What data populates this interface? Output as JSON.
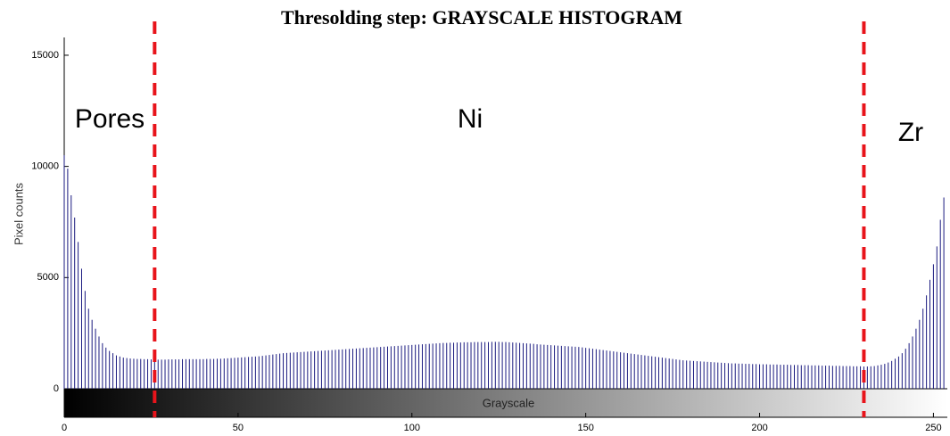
{
  "chart_data": {
    "type": "histogram",
    "title": "Thresolding step: GRAYSCALE HISTOGRAM",
    "y_label": "Pixel counts",
    "colorbar_label": "Grayscale",
    "annotations": [
      "Pores",
      "Ni",
      "Zr"
    ],
    "thresholds": [
      26,
      230
    ],
    "threshold_color": "#e8141b",
    "color": "#1a1a80",
    "xlim": [
      0,
      254
    ],
    "ylim": [
      0,
      15800
    ],
    "xticks": [
      0,
      50,
      100,
      150,
      200,
      250
    ],
    "yticks": [
      0,
      5000,
      10000,
      15000
    ],
    "values": [
      10500,
      9900,
      8700,
      7700,
      6600,
      5400,
      4400,
      3600,
      3100,
      2700,
      2350,
      2050,
      1850,
      1700,
      1600,
      1500,
      1450,
      1400,
      1380,
      1360,
      1350,
      1340,
      1340,
      1330,
      1330,
      1320,
      1320,
      1310,
      1310,
      1310,
      1320,
      1320,
      1320,
      1320,
      1330,
      1330,
      1330,
      1330,
      1330,
      1330,
      1330,
      1340,
      1340,
      1340,
      1350,
      1350,
      1360,
      1370,
      1380,
      1390,
      1400,
      1410,
      1420,
      1430,
      1440,
      1450,
      1460,
      1480,
      1500,
      1520,
      1540,
      1560,
      1580,
      1600,
      1610,
      1620,
      1630,
      1640,
      1650,
      1660,
      1670,
      1680,
      1690,
      1700,
      1710,
      1720,
      1730,
      1740,
      1750,
      1760,
      1770,
      1780,
      1790,
      1800,
      1810,
      1820,
      1830,
      1840,
      1850,
      1860,
      1870,
      1880,
      1890,
      1900,
      1910,
      1920,
      1930,
      1940,
      1950,
      1960,
      1970,
      1980,
      1990,
      2000,
      2010,
      2020,
      2030,
      2040,
      2050,
      2060,
      2060,
      2070,
      2070,
      2080,
      2080,
      2090,
      2090,
      2090,
      2100,
      2100,
      2100,
      2100,
      2100,
      2110,
      2110,
      2110,
      2100,
      2100,
      2090,
      2080,
      2070,
      2060,
      2050,
      2040,
      2030,
      2020,
      2000,
      1990,
      1980,
      1970,
      1960,
      1950,
      1940,
      1930,
      1920,
      1910,
      1900,
      1890,
      1880,
      1860,
      1840,
      1820,
      1800,
      1780,
      1760,
      1740,
      1720,
      1700,
      1680,
      1660,
      1640,
      1620,
      1600,
      1580,
      1560,
      1540,
      1520,
      1500,
      1480,
      1460,
      1440,
      1420,
      1400,
      1380,
      1360,
      1340,
      1320,
      1300,
      1280,
      1270,
      1260,
      1250,
      1240,
      1230,
      1220,
      1210,
      1200,
      1190,
      1180,
      1170,
      1160,
      1150,
      1140,
      1140,
      1130,
      1130,
      1120,
      1120,
      1110,
      1110,
      1100,
      1100,
      1100,
      1090,
      1090,
      1090,
      1080,
      1080,
      1080,
      1070,
      1070,
      1070,
      1060,
      1060,
      1060,
      1050,
      1050,
      1050,
      1040,
      1040,
      1040,
      1030,
      1030,
      1030,
      1020,
      1020,
      1020,
      1010,
      1010,
      1010,
      1000,
      1000,
      1010,
      1020,
      1050,
      1080,
      1120,
      1180,
      1250,
      1350,
      1450,
      1600,
      1800,
      2050,
      2350,
      2700,
      3100,
      3600,
      4200,
      4900,
      5600,
      6400,
      7600,
      8600
    ]
  }
}
